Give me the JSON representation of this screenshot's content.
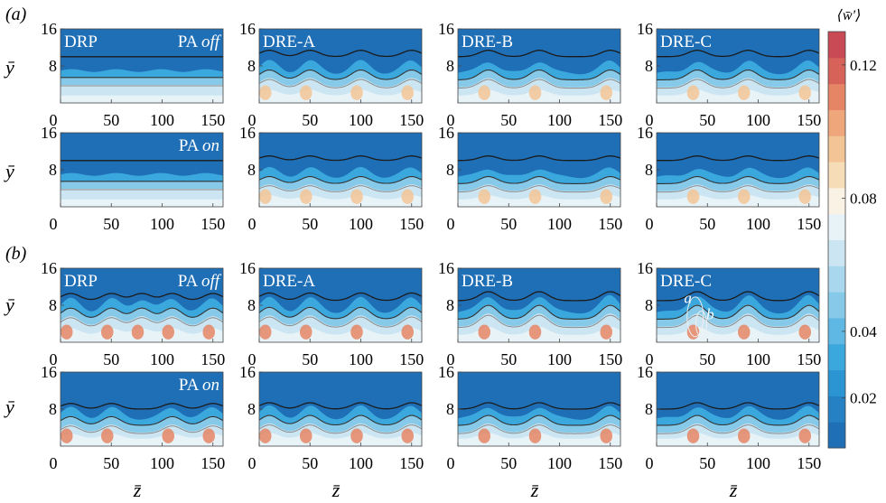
{
  "chart_data": {
    "type": "heatmap",
    "description_fields": {
      "section_labels": [
        "(a)",
        "(b)"
      ],
      "xlabel": "z̄",
      "ylabel": "ȳ",
      "colorbar_label": "⟨w̄′⟩"
    },
    "x_ticks": [
      0,
      50,
      100,
      150
    ],
    "y_ticks": [
      8,
      16
    ],
    "xlim": [
      0,
      160
    ],
    "ylim": [
      0,
      16
    ],
    "colorbar": {
      "ticks": [
        0.02,
        0.04,
        0.08,
        0.12
      ],
      "range": [
        0.005,
        0.13
      ],
      "levels": 16,
      "colors": [
        "#1f6fb7",
        "#2581c4",
        "#2b94d2",
        "#3aa7dd",
        "#5fb8e3",
        "#86c9e9",
        "#a9d8ee",
        "#cbe6f2",
        "#e8f3f8",
        "#fbf2e6",
        "#f7dcb8",
        "#f3c495",
        "#eea67a",
        "#e58565",
        "#d6625a",
        "#c94a55"
      ]
    },
    "col_labels": [
      "DRP",
      "DRE-A",
      "DRE-B",
      "DRE-C"
    ],
    "pa_labels": {
      "off_prefix": "PA ",
      "off_word": "off",
      "on_prefix": "PA ",
      "on_word": "on"
    },
    "annotations": {
      "a": "a",
      "b": "b"
    },
    "panels": [
      {
        "section": "a",
        "pa": "off",
        "col": 0,
        "peaks": [],
        "upper_contour": 10,
        "lower_contour": 5.5,
        "amplitude": 0.3
      },
      {
        "section": "a",
        "pa": "off",
        "col": 1,
        "peaks": [
          10,
          50,
          100,
          150
        ],
        "upper_contour": 10,
        "lower_contour": 5,
        "amplitude": 2.5
      },
      {
        "section": "a",
        "pa": "off",
        "col": 2,
        "peaks": [
          30,
          80,
          150
        ],
        "upper_contour": 10,
        "lower_contour": 5,
        "amplitude": 2.5
      },
      {
        "section": "a",
        "pa": "off",
        "col": 3,
        "peaks": [
          40,
          90,
          150
        ],
        "upper_contour": 10,
        "lower_contour": 5,
        "amplitude": 2.5
      },
      {
        "section": "a",
        "pa": "on",
        "col": 0,
        "peaks": [],
        "upper_contour": 10,
        "lower_contour": 5.5,
        "amplitude": 0.4
      },
      {
        "section": "a",
        "pa": "on",
        "col": 1,
        "peaks": [
          10,
          50,
          100,
          150
        ],
        "upper_contour": 10,
        "lower_contour": 5,
        "amplitude": 1.8
      },
      {
        "section": "a",
        "pa": "on",
        "col": 2,
        "peaks": [
          30,
          80,
          150
        ],
        "upper_contour": 10,
        "lower_contour": 5,
        "amplitude": 1.8
      },
      {
        "section": "a",
        "pa": "on",
        "col": 3,
        "peaks": [
          40,
          90,
          150
        ],
        "upper_contour": 10,
        "lower_contour": 5,
        "amplitude": 1.8
      },
      {
        "section": "b",
        "pa": "off",
        "col": 0,
        "peaks": [
          10,
          50,
          80,
          110,
          150
        ],
        "upper_contour": 9,
        "lower_contour": 5,
        "amplitude": 2.8
      },
      {
        "section": "b",
        "pa": "off",
        "col": 1,
        "peaks": [
          10,
          50,
          100,
          150
        ],
        "upper_contour": 9,
        "lower_contour": 5,
        "amplitude": 3.0
      },
      {
        "section": "b",
        "pa": "off",
        "col": 2,
        "peaks": [
          30,
          80,
          150
        ],
        "upper_contour": 9,
        "lower_contour": 5,
        "amplitude": 3.5
      },
      {
        "section": "b",
        "pa": "off",
        "col": 3,
        "peaks": [
          40,
          90,
          150
        ],
        "upper_contour": 9,
        "lower_contour": 5,
        "amplitude": 3.5
      },
      {
        "section": "b",
        "pa": "on",
        "col": 0,
        "peaks": [
          10,
          50,
          110,
          150
        ],
        "upper_contour": 8,
        "lower_contour": 4.5,
        "amplitude": 2.2
      },
      {
        "section": "b",
        "pa": "on",
        "col": 1,
        "peaks": [
          10,
          50,
          100,
          150
        ],
        "upper_contour": 8,
        "lower_contour": 4.5,
        "amplitude": 2.5
      },
      {
        "section": "b",
        "pa": "on",
        "col": 2,
        "peaks": [
          30,
          80,
          150
        ],
        "upper_contour": 8,
        "lower_contour": 4.5,
        "amplitude": 2.5
      },
      {
        "section": "b",
        "pa": "on",
        "col": 3,
        "peaks": [
          40,
          90,
          150
        ],
        "upper_contour": 8,
        "lower_contour": 4.5,
        "amplitude": 2.5
      }
    ]
  }
}
